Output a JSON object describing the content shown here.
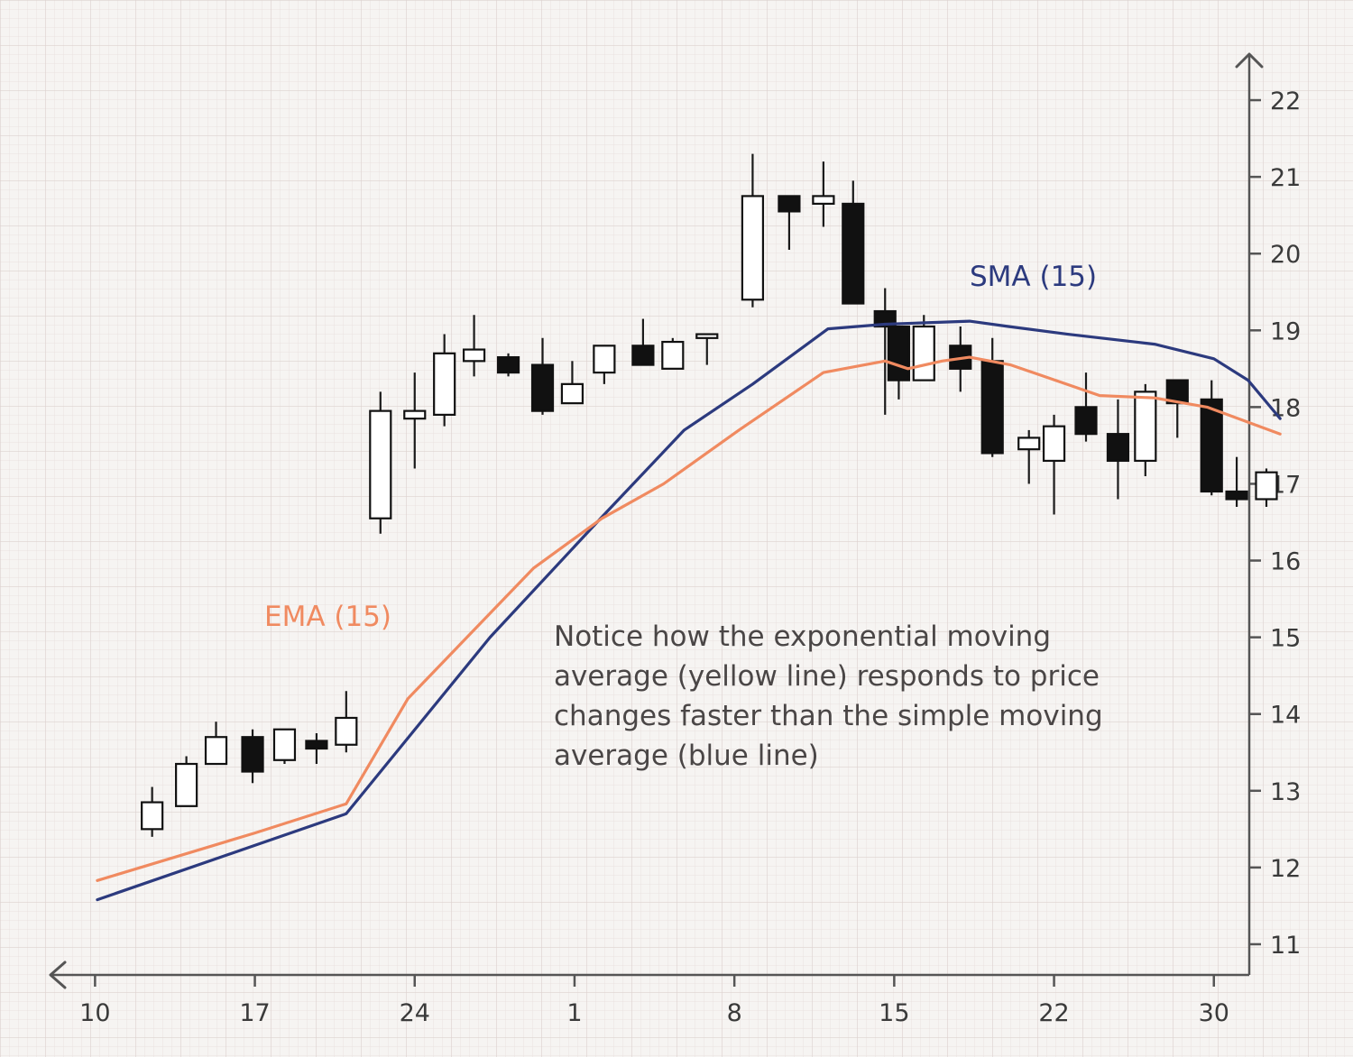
{
  "chart_data": {
    "type": "candlestick",
    "title": "",
    "xlabel": "",
    "ylabel": "",
    "x_ticks": [
      {
        "label": "10",
        "day": 10
      },
      {
        "label": "17",
        "day": 17
      },
      {
        "label": "24",
        "day": 24
      },
      {
        "label": "1",
        "day": 31
      },
      {
        "label": "8",
        "day": 38
      },
      {
        "label": "15",
        "day": 45
      },
      {
        "label": "22",
        "day": 52
      },
      {
        "label": "30",
        "day": 59
      }
    ],
    "xlim": [
      8.05,
      60.55
    ],
    "ylim": [
      10.6,
      22.6
    ],
    "y_ticks": [
      11,
      12,
      13,
      14,
      15,
      16,
      17,
      18,
      19,
      20,
      21,
      22
    ],
    "y_axis_side": "right",
    "grid": true,
    "candles": [
      {
        "day": 12.5,
        "open": 12.5,
        "high": 13.05,
        "low": 12.4,
        "close": 12.85
      },
      {
        "day": 14.0,
        "open": 12.8,
        "high": 13.45,
        "low": 12.8,
        "close": 13.35
      },
      {
        "day": 15.3,
        "open": 13.35,
        "high": 13.9,
        "low": 13.35,
        "close": 13.7
      },
      {
        "day": 16.9,
        "open": 13.7,
        "high": 13.8,
        "low": 13.1,
        "close": 13.25
      },
      {
        "day": 18.3,
        "open": 13.4,
        "high": 13.8,
        "low": 13.35,
        "close": 13.8
      },
      {
        "day": 19.7,
        "open": 13.65,
        "high": 13.75,
        "low": 13.35,
        "close": 13.55
      },
      {
        "day": 21.0,
        "open": 13.6,
        "high": 14.3,
        "low": 13.5,
        "close": 13.95
      },
      {
        "day": 22.5,
        "open": 16.55,
        "high": 18.2,
        "low": 16.35,
        "close": 17.95
      },
      {
        "day": 24.0,
        "open": 17.85,
        "high": 18.45,
        "low": 17.2,
        "close": 17.95
      },
      {
        "day": 25.3,
        "open": 17.9,
        "high": 18.95,
        "low": 17.75,
        "close": 18.7
      },
      {
        "day": 26.6,
        "open": 18.6,
        "high": 19.2,
        "low": 18.4,
        "close": 18.75
      },
      {
        "day": 28.1,
        "open": 18.65,
        "high": 18.7,
        "low": 18.4,
        "close": 18.45
      },
      {
        "day": 29.6,
        "open": 18.55,
        "high": 18.9,
        "low": 17.9,
        "close": 17.95
      },
      {
        "day": 30.9,
        "open": 18.05,
        "high": 18.6,
        "low": 18.05,
        "close": 18.3
      },
      {
        "day": 32.3,
        "open": 18.45,
        "high": 18.8,
        "low": 18.3,
        "close": 18.8
      },
      {
        "day": 34.0,
        "open": 18.8,
        "high": 19.15,
        "low": 18.55,
        "close": 18.55
      },
      {
        "day": 35.3,
        "open": 18.5,
        "high": 18.9,
        "low": 18.5,
        "close": 18.85
      },
      {
        "day": 36.8,
        "open": 18.9,
        "high": 18.95,
        "low": 18.55,
        "close": 18.95
      },
      {
        "day": 38.8,
        "open": 19.4,
        "high": 21.3,
        "low": 19.3,
        "close": 20.75
      },
      {
        "day": 40.4,
        "open": 20.75,
        "high": 20.75,
        "low": 20.05,
        "close": 20.55
      },
      {
        "day": 41.9,
        "open": 20.65,
        "high": 21.2,
        "low": 20.35,
        "close": 20.75
      },
      {
        "day": 43.2,
        "open": 20.65,
        "high": 20.95,
        "low": 19.35,
        "close": 19.35
      },
      {
        "day": 44.6,
        "open": 19.25,
        "high": 19.55,
        "low": 17.9,
        "close": 19.05
      },
      {
        "day": 45.2,
        "open": 19.05,
        "high": 19.0,
        "low": 18.1,
        "close": 18.35
      },
      {
        "day": 46.3,
        "open": 18.35,
        "high": 19.2,
        "low": 18.35,
        "close": 19.05
      },
      {
        "day": 47.9,
        "open": 18.8,
        "high": 19.05,
        "low": 18.2,
        "close": 18.5
      },
      {
        "day": 49.3,
        "open": 18.6,
        "high": 18.9,
        "low": 17.35,
        "close": 17.4
      },
      {
        "day": 50.9,
        "open": 17.45,
        "high": 17.7,
        "low": 17.0,
        "close": 17.6
      },
      {
        "day": 52.0,
        "open": 17.3,
        "high": 17.9,
        "low": 16.6,
        "close": 17.75
      },
      {
        "day": 53.4,
        "open": 18.0,
        "high": 18.45,
        "low": 17.55,
        "close": 17.65
      },
      {
        "day": 54.8,
        "open": 17.65,
        "high": 18.1,
        "low": 16.8,
        "close": 17.3
      },
      {
        "day": 56.0,
        "open": 17.3,
        "high": 18.3,
        "low": 17.1,
        "close": 18.2
      },
      {
        "day": 57.4,
        "open": 18.35,
        "high": 18.35,
        "low": 17.6,
        "close": 18.05
      },
      {
        "day": 58.9,
        "open": 18.1,
        "high": 18.35,
        "low": 16.85,
        "close": 16.9
      },
      {
        "day": 60.0,
        "open": 16.9,
        "high": 17.35,
        "low": 16.7,
        "close": 16.8
      },
      {
        "day": 61.3,
        "open": 16.8,
        "high": 17.2,
        "low": 16.7,
        "close": 17.15
      }
    ],
    "series": [
      {
        "name": "SMA (15)",
        "color": "#2c3a7e",
        "points": [
          [
            10.1,
            11.58
          ],
          [
            21.0,
            12.7
          ],
          [
            27.3,
            15.0
          ],
          [
            32.3,
            16.6
          ],
          [
            35.8,
            17.7
          ],
          [
            38.8,
            18.3
          ],
          [
            42.1,
            19.02
          ],
          [
            44.6,
            19.08
          ],
          [
            48.3,
            19.12
          ],
          [
            50.0,
            19.05
          ],
          [
            52.6,
            18.95
          ],
          [
            56.4,
            18.82
          ],
          [
            59.0,
            18.63
          ],
          [
            60.5,
            18.35
          ],
          [
            61.9,
            17.85
          ]
        ]
      },
      {
        "name": "EMA (15)",
        "color": "#f08a60",
        "points": [
          [
            10.1,
            11.83
          ],
          [
            17.0,
            12.45
          ],
          [
            21.0,
            12.83
          ],
          [
            23.7,
            14.2
          ],
          [
            29.2,
            15.9
          ],
          [
            32.2,
            16.55
          ],
          [
            34.9,
            17.0
          ],
          [
            38.2,
            17.7
          ],
          [
            41.9,
            18.45
          ],
          [
            44.6,
            18.6
          ],
          [
            45.6,
            18.5
          ],
          [
            47.1,
            18.6
          ],
          [
            48.3,
            18.65
          ],
          [
            50.1,
            18.55
          ],
          [
            54.0,
            18.15
          ],
          [
            56.4,
            18.12
          ],
          [
            58.7,
            18.0
          ],
          [
            61.9,
            17.65
          ]
        ]
      }
    ],
    "annotation": "Notice how the exponential moving average (yellow line) responds to price changes faster than the simple moving average (blue line)"
  }
}
